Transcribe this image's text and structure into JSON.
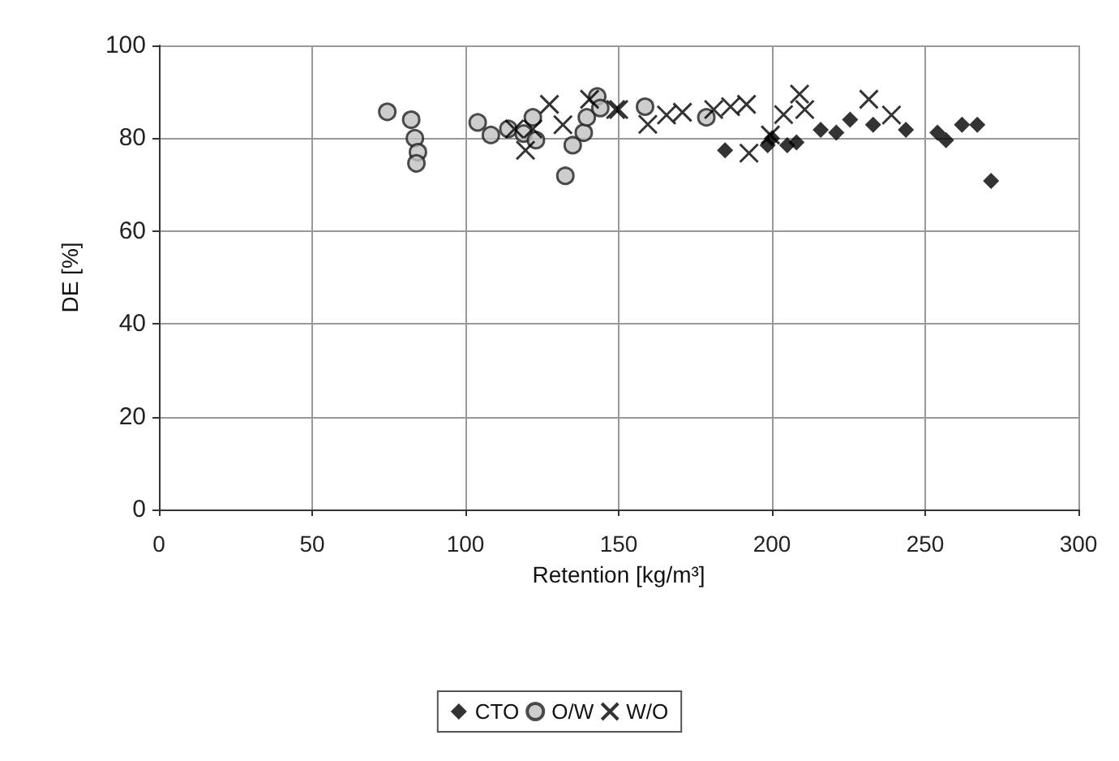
{
  "chart_data": {
    "type": "scatter",
    "xlabel": "Retention [kg/m³]",
    "ylabel": "DE [%]",
    "xlim": [
      0,
      300
    ],
    "xticks": [
      0,
      50,
      100,
      150,
      200,
      250,
      300
    ],
    "ylim": [
      0,
      100
    ],
    "yticks": [
      0,
      20,
      40,
      60,
      80,
      100
    ],
    "grid": true,
    "legend": "bottom",
    "series": [
      {
        "name": "CTO",
        "color": "#000000",
        "marker": "diamond",
        "x": [
          184.7,
          198.6,
          200,
          205,
          208,
          215.9,
          221,
          225.5,
          233,
          243.7,
          254,
          256.8,
          262,
          267,
          271.5
        ],
        "values": [
          77.4,
          78.5,
          80,
          78.5,
          79.1,
          81.8,
          81.2,
          84,
          82.9,
          81.8,
          81.2,
          79.6,
          82.9,
          82.9,
          70.8
        ]
      },
      {
        "name": "O/W",
        "color": "#c0c0c0",
        "marker": "circle",
        "x": [
          74.5,
          82.3,
          83.5,
          84.5,
          84,
          104,
          108.3,
          114,
          119,
          122,
          123,
          132.6,
          135,
          138.6,
          139.6,
          143,
          144,
          158.6,
          178.6
        ],
        "values": [
          85.7,
          84,
          80,
          77,
          74.6,
          83.4,
          80.7,
          82,
          81,
          84.5,
          79.6,
          71.9,
          78.5,
          81.2,
          84.5,
          89,
          86.5,
          86.8,
          84.5
        ]
      },
      {
        "name": "W/O",
        "color": "#000000",
        "marker": "cross",
        "x": [
          116,
          119.6,
          122,
          127.4,
          131.8,
          140.5,
          149,
          150,
          159.5,
          165.6,
          170.8,
          181,
          186.5,
          191.7,
          192.5,
          199.5,
          203.8,
          209,
          210.7,
          231.6,
          239
        ],
        "values": [
          82,
          77.4,
          82,
          87.3,
          82.9,
          88.4,
          86.2,
          86.2,
          83,
          85,
          85.6,
          86.2,
          86.8,
          87.3,
          76.8,
          80.7,
          85.1,
          89.5,
          86.2,
          88.4,
          85
        ]
      }
    ]
  }
}
